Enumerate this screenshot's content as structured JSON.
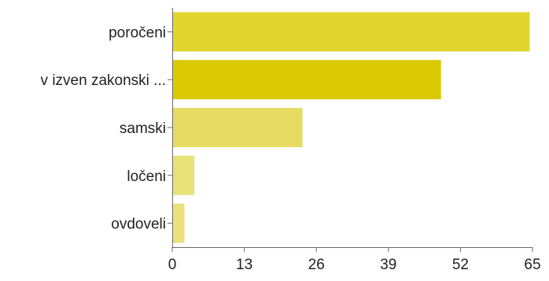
{
  "chart_data": {
    "type": "bar",
    "orientation": "horizontal",
    "categories": [
      "poročeni",
      "v izven zakonski ...",
      "samski",
      "ločeni",
      "ovdoveli"
    ],
    "values": [
      64.5,
      48.5,
      23.5,
      4,
      2.2
    ],
    "xlim": [
      0,
      65
    ],
    "xticks": [
      0,
      13,
      26,
      39,
      52,
      65
    ],
    "colors": [
      "#e3d52f",
      "#dbc906",
      "#e6dc64",
      "#e9e17a",
      "#ebe27c"
    ],
    "axis_color": "#6a6a6a",
    "grid": false,
    "title": "",
    "xlabel": "",
    "ylabel": ""
  }
}
